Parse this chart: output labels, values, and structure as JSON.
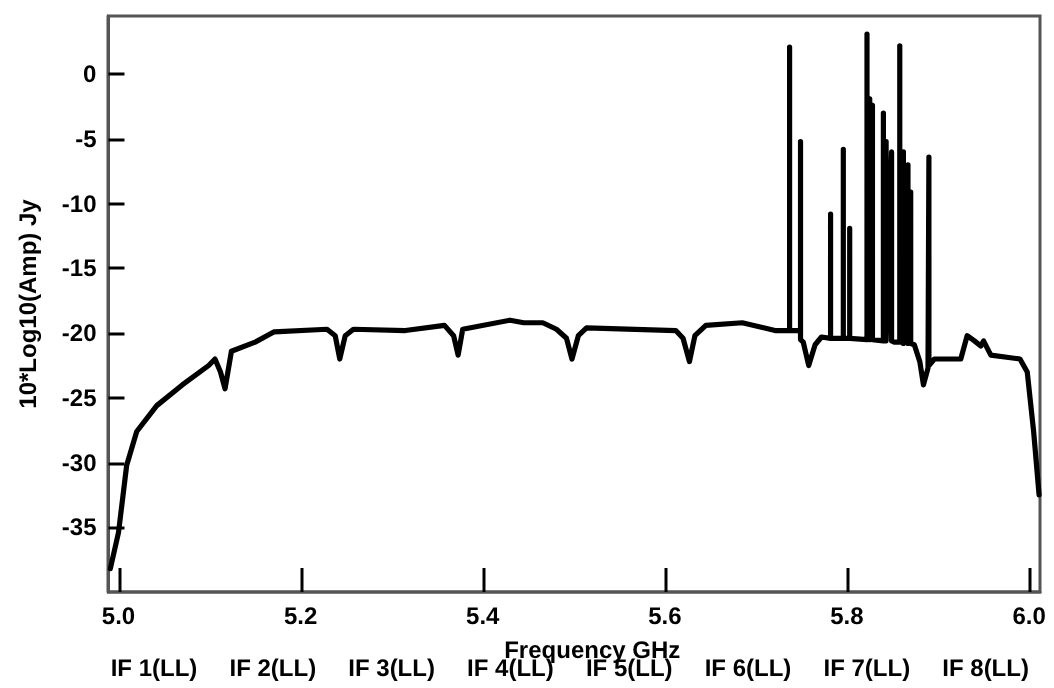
{
  "chart_data": {
    "type": "line",
    "xlabel": "Frequency GHz",
    "ylabel": "10*Log10(Amp) Jy",
    "annotations": [
      "IF 1(LL)",
      "IF 2(LL)",
      "IF 3(LL)",
      "IF 4(LL)",
      "IF 5(LL)",
      "IF 6(LL)",
      "IF 7(LL)",
      "IF 8(LL)"
    ],
    "xlim": [
      4.989,
      6.012
    ],
    "ylim": [
      -40,
      4.5
    ],
    "xticks": [
      {
        "value": 5,
        "label": "5.0"
      },
      5.2,
      5.4,
      5.6,
      5.8,
      {
        "value": 6,
        "label": "6.0"
      }
    ],
    "yticks": [
      0,
      -5,
      -10,
      -15,
      -20,
      -25,
      -30,
      -35
    ],
    "series": [
      {
        "color": "#000000",
        "x": [
          4.991,
          5.0,
          5.009,
          5.02,
          5.042,
          5.07,
          5.099,
          5.106,
          5.112,
          5.117,
          5.124,
          5.15,
          5.171,
          5.229,
          5.238,
          5.243,
          5.249,
          5.258,
          5.315,
          5.358,
          5.368,
          5.373,
          5.378,
          5.43,
          5.445,
          5.466,
          5.481,
          5.492,
          5.498,
          5.505,
          5.514,
          5.612,
          5.62,
          5.627,
          5.633,
          5.645,
          5.685,
          5.721,
          5.737,
          5.737,
          5.737,
          5.747,
          5.749,
          5.749,
          5.749,
          5.752,
          5.758,
          5.765,
          5.772,
          5.782,
          5.782,
          5.782,
          5.794,
          5.796,
          5.796,
          5.796,
          5.803,
          5.803,
          5.803,
          5.822,
          5.822,
          5.822,
          5.825,
          5.825,
          5.828,
          5.828,
          5.84,
          5.84,
          5.84,
          5.843,
          5.843,
          5.849,
          5.849,
          5.852,
          5.858,
          5.858,
          5.858,
          5.862,
          5.862,
          5.867,
          5.867,
          5.87,
          5.87,
          5.874,
          5.88,
          5.884,
          5.889,
          5.89,
          5.89,
          5.896,
          5.925,
          5.932,
          5.94,
          5.947,
          5.95,
          5.958,
          5.99,
          5.998,
          6.005,
          6.011
        ],
        "values": [
          -38.2,
          -35.4,
          -30.2,
          -27.6,
          -25.6,
          -24,
          -22.5,
          -22,
          -23,
          -24.3,
          -21.4,
          -20.7,
          -19.9,
          -19.7,
          -20.2,
          -22,
          -20.2,
          -19.7,
          -19.8,
          -19.4,
          -20.2,
          -21.7,
          -19.7,
          -19,
          -19.2,
          -19.2,
          -19.7,
          -20.4,
          -22,
          -20.2,
          -19.6,
          -19.8,
          -20.4,
          -22.2,
          -20.2,
          -19.4,
          -19.2,
          -19.8,
          -19.8,
          2.1,
          -19.8,
          -19.8,
          -19.8,
          -5.2,
          -20.5,
          -20.7,
          -22.5,
          -20.9,
          -20.3,
          -20.4,
          -10.8,
          -20.4,
          -20.4,
          -20.4,
          -5.8,
          -20.4,
          -20.4,
          -11.9,
          -20.4,
          -20.5,
          3.1,
          -20.5,
          -1.9,
          -20.5,
          -2.4,
          -20.5,
          -20.6,
          -3,
          -20.6,
          -5.2,
          -20.6,
          -6,
          -20.6,
          -20.7,
          -20.7,
          2.2,
          -20.7,
          -6,
          -20.8,
          -7,
          -20.8,
          -9.1,
          -20.8,
          -20.9,
          -22.2,
          -24,
          -22.7,
          -6.4,
          -22.5,
          -22,
          -22,
          -20.2,
          -20.6,
          -21,
          -20.6,
          -21.7,
          -22,
          -23,
          -27.6,
          -32.5
        ]
      }
    ]
  }
}
